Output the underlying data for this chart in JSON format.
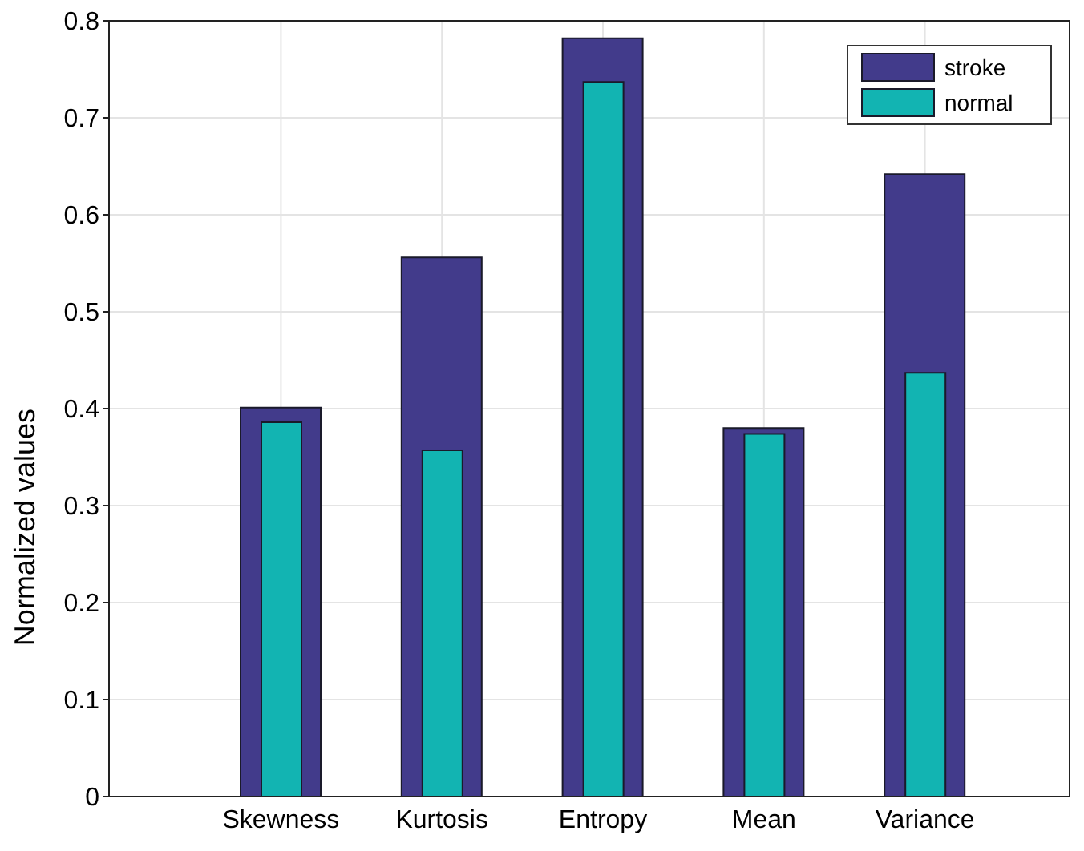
{
  "chart_data": {
    "type": "bar",
    "ylabel": "Normalized values",
    "categories": [
      "Skewness",
      "Kurtosis",
      "Entropy",
      "Mean",
      "Variance"
    ],
    "series": [
      {
        "name": "stroke",
        "color": "#423b8b",
        "values": [
          0.401,
          0.556,
          0.782,
          0.38,
          0.642
        ]
      },
      {
        "name": "normal",
        "color": "#12b4b2",
        "values": [
          0.386,
          0.357,
          0.737,
          0.374,
          0.437
        ]
      }
    ],
    "ylim": [
      0,
      0.8
    ],
    "yticks": [
      0,
      0.1,
      0.2,
      0.3,
      0.4,
      0.5,
      0.6,
      0.7,
      0.8
    ],
    "grid": true,
    "legend": "top right"
  }
}
